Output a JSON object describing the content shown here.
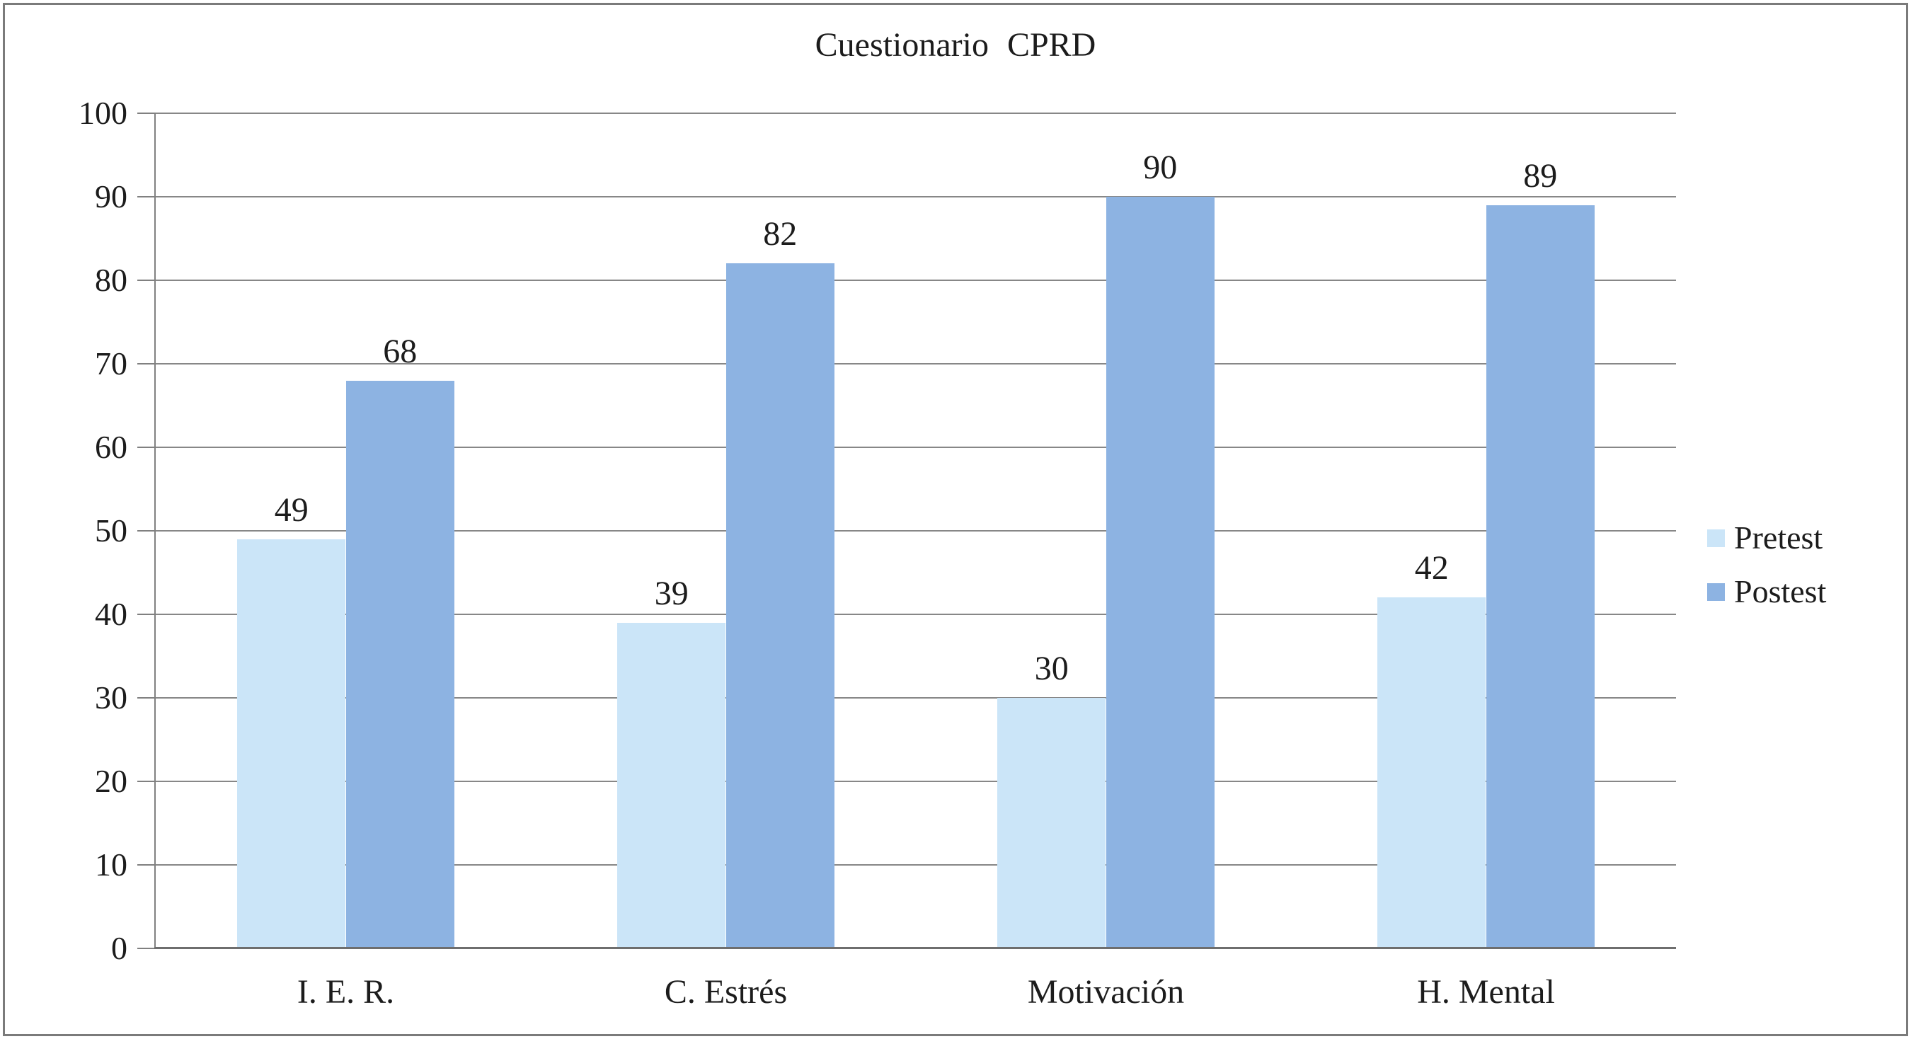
{
  "chart_data": {
    "type": "bar",
    "title": "Cuestionario CPRD",
    "categories": [
      "I. E. R.",
      "C. Estrés",
      "Motivación",
      "H. Mental"
    ],
    "series": [
      {
        "name": "Pretest",
        "color": "#CBE5F8",
        "values": [
          49,
          39,
          30,
          42
        ]
      },
      {
        "name": "Postest",
        "color": "#8DB3E2",
        "values": [
          68,
          82,
          90,
          89
        ]
      }
    ],
    "ylim": [
      0,
      100
    ],
    "yticks": [
      0,
      10,
      20,
      30,
      40,
      50,
      60,
      70,
      80,
      90,
      100
    ],
    "xlabel": "",
    "ylabel": "",
    "grid": "horizontal",
    "legend_position": "right",
    "data_labels": true
  },
  "styles": {
    "background": "#ffffff",
    "text_color": "#1c1c1c",
    "gridline_color": "#878787",
    "y_axis_color": "#808080",
    "x_axis_color": "#6e6e6e",
    "border_color": "#7b7b7b"
  }
}
